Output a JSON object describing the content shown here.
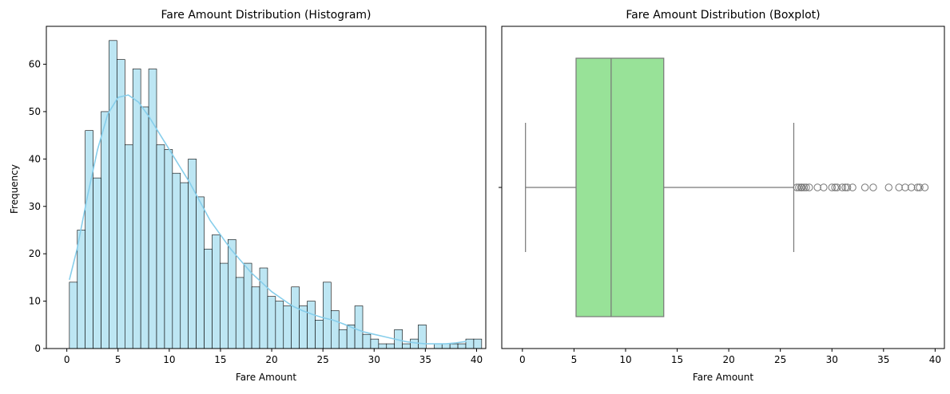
{
  "colors": {
    "hist_bar": "#bde6f3",
    "kde_line": "#87ceeb",
    "box_fill": "#98e298",
    "box_edge": "#777777",
    "axes": "#000000"
  },
  "chart_data": [
    {
      "type": "bar",
      "title": "Fare Amount Distribution (Histogram)",
      "xlabel": "Fare Amount",
      "ylabel": "Frequency",
      "xlim": [
        -2.0,
        40.9
      ],
      "ylim": [
        0,
        68
      ],
      "xticks": [
        0,
        5,
        10,
        15,
        20,
        25,
        30,
        35,
        40
      ],
      "yticks": [
        0,
        10,
        20,
        30,
        40,
        50,
        60
      ],
      "bin_start": 0.25,
      "bin_width": 0.774,
      "values": [
        14,
        25,
        46,
        36,
        50,
        65,
        61,
        43,
        59,
        51,
        59,
        43,
        42,
        37,
        35,
        40,
        32,
        21,
        24,
        18,
        23,
        15,
        18,
        13,
        17,
        11,
        10,
        9,
        13,
        9,
        10,
        6,
        14,
        8,
        4,
        5,
        9,
        3,
        2,
        1,
        1,
        4,
        1,
        2,
        5,
        0,
        1,
        1,
        1,
        1,
        2,
        2
      ],
      "kde": {
        "x": [
          0.25,
          1,
          2,
          3,
          4,
          5,
          6,
          7,
          8,
          9,
          10,
          11,
          12,
          13,
          14,
          15,
          16,
          17,
          18,
          19,
          20,
          21,
          22,
          23,
          24,
          25,
          26,
          27,
          28,
          29,
          30,
          31,
          32,
          33,
          34,
          35,
          36,
          37,
          38,
          39
        ],
        "y": [
          14.5,
          21,
          32,
          42,
          49.5,
          53,
          53.5,
          52,
          49,
          45.5,
          42,
          38.5,
          35,
          31,
          27,
          24,
          21,
          18.5,
          16,
          14,
          12,
          10.5,
          9,
          8,
          7.2,
          6.5,
          6,
          5.2,
          4.3,
          3.5,
          3,
          2.5,
          2,
          1.5,
          1.2,
          1,
          1,
          1,
          1.2,
          1.5
        ]
      }
    },
    {
      "type": "box",
      "title": "Fare Amount Distribution (Boxplot)",
      "xlabel": "Fare Amount",
      "xlim": [
        -2.0,
        40.9
      ],
      "xticks": [
        0,
        5,
        10,
        15,
        20,
        25,
        30,
        35,
        40
      ],
      "whisker_low": 0.3,
      "q1": 5.2,
      "median": 8.6,
      "q3": 13.7,
      "whisker_high": 26.3,
      "outliers": [
        26.6,
        26.8,
        27.0,
        27.1,
        27.3,
        27.5,
        27.8,
        28.6,
        29.2,
        30.0,
        30.3,
        30.5,
        31.0,
        31.3,
        31.5,
        32.0,
        33.2,
        34.0,
        35.5,
        36.5,
        37.1,
        37.7,
        38.3,
        38.5,
        39.0
      ]
    }
  ]
}
